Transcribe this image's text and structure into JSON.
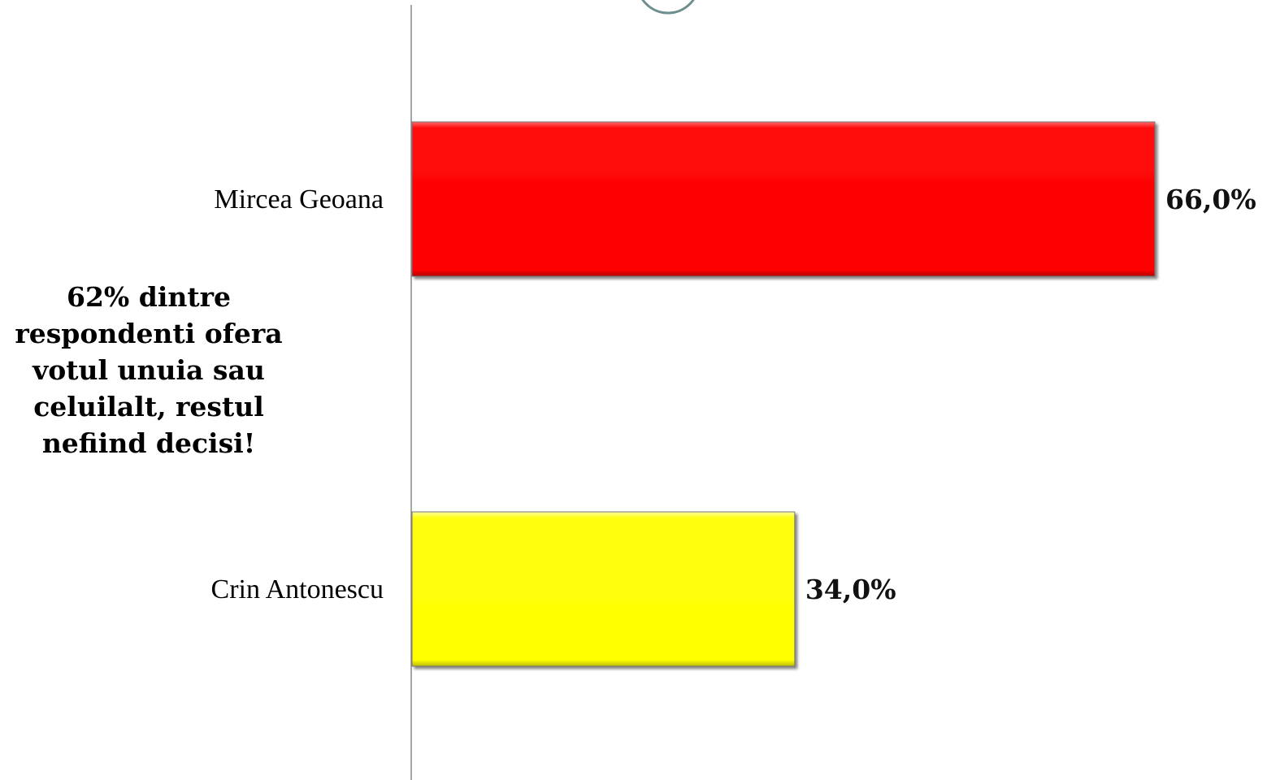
{
  "chart_data": {
    "type": "bar",
    "orientation": "horizontal",
    "categories": [
      "Mircea Geoana",
      "Crin Antonescu"
    ],
    "values": [
      66.0,
      34.0
    ],
    "value_labels": [
      "66,0%",
      "34,0%"
    ],
    "bar_colors": [
      "#ff0000",
      "#ffff00"
    ],
    "xlim": [
      0,
      100
    ],
    "title": "",
    "xlabel": "",
    "ylabel": "",
    "grid": false,
    "legend": "none"
  },
  "annotation": {
    "lines": [
      "62% dintre",
      "respondenti ofera",
      "votul unuia sau",
      "celuilalt, restul",
      "nefiind decisi!"
    ]
  }
}
